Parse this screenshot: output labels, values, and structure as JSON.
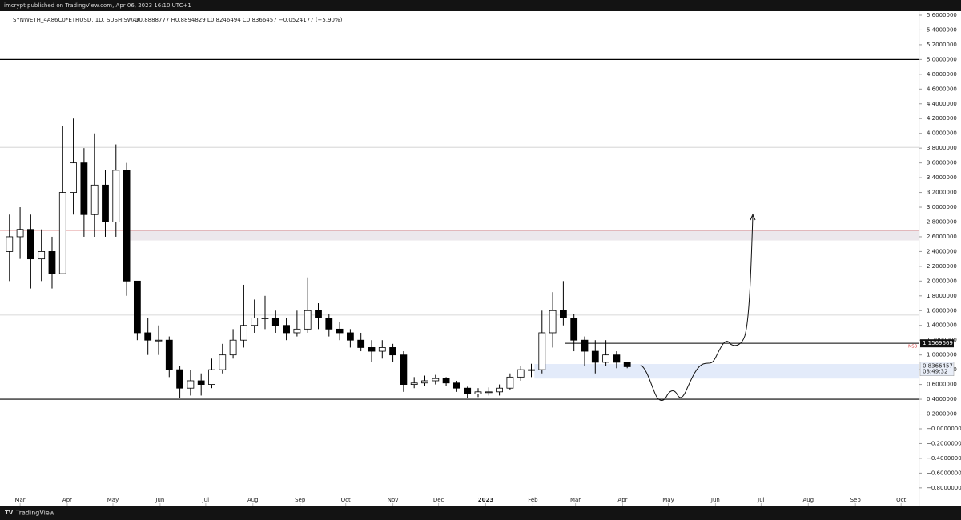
{
  "header": {
    "publisher": "imcrypt published on TradingView.com, Apr 06, 2023 16:10 UTC+1"
  },
  "footer": {
    "brand": "TradingView"
  },
  "chart_data": {
    "type": "candlestick",
    "symbol": "SYNWETH_4A86C0*ETHUSD, 1D, SUSHISWAP",
    "ohlc_text": "O0.8888777 H0.8894829 L0.8246494 C0.8366457 −0.0524177 (−5.90%)",
    "x": [
      -7,
      0,
      7,
      14,
      21,
      28,
      35,
      42,
      49,
      56,
      63,
      70,
      77,
      84,
      91,
      98,
      105,
      112,
      119,
      126,
      133,
      140,
      147,
      154,
      161,
      168,
      175,
      182,
      189,
      196,
      203,
      210,
      217,
      224,
      231,
      238,
      245,
      252,
      259,
      266,
      273,
      280,
      287,
      294,
      301,
      308,
      315,
      322,
      329,
      336,
      343,
      350,
      357,
      364,
      371,
      378,
      385,
      392,
      399
    ],
    "open": [
      2.4,
      2.6,
      2.7,
      2.3,
      2.4,
      2.1,
      3.2,
      3.6,
      2.9,
      3.3,
      2.8,
      3.5,
      2.0,
      1.3,
      1.2,
      1.2,
      0.8,
      0.55,
      0.65,
      0.6,
      0.8,
      1.0,
      1.2,
      1.4,
      1.5,
      1.5,
      1.4,
      1.3,
      1.35,
      1.6,
      1.5,
      1.35,
      1.3,
      1.2,
      1.1,
      1.05,
      1.1,
      1.0,
      0.6,
      0.62,
      0.65,
      0.68,
      0.62,
      0.55,
      0.47,
      0.5,
      0.5,
      0.55,
      0.7,
      0.8,
      0.8,
      1.3,
      1.6,
      1.5,
      1.2,
      1.05,
      0.9,
      1.0,
      0.9
    ],
    "high": [
      2.9,
      3.0,
      2.9,
      2.7,
      2.6,
      4.1,
      4.2,
      3.8,
      4.0,
      3.5,
      3.85,
      3.6,
      2.0,
      1.5,
      1.4,
      1.25,
      0.85,
      0.8,
      0.75,
      0.95,
      1.15,
      1.35,
      1.95,
      1.75,
      1.8,
      1.6,
      1.5,
      1.6,
      2.05,
      1.7,
      1.55,
      1.45,
      1.35,
      1.3,
      1.2,
      1.2,
      1.15,
      1.05,
      0.7,
      0.72,
      0.73,
      0.7,
      0.65,
      0.57,
      0.55,
      0.56,
      0.6,
      0.75,
      0.85,
      0.88,
      1.6,
      1.85,
      2.0,
      1.55,
      1.25,
      1.2,
      1.2,
      1.05,
      0.9
    ],
    "low": [
      2.0,
      2.3,
      1.9,
      2.0,
      1.9,
      2.1,
      2.9,
      2.6,
      2.6,
      2.6,
      2.6,
      1.8,
      1.2,
      1.0,
      1.0,
      0.7,
      0.42,
      0.45,
      0.45,
      0.55,
      0.75,
      0.95,
      1.1,
      1.3,
      1.35,
      1.3,
      1.2,
      1.25,
      1.3,
      1.35,
      1.25,
      1.2,
      1.1,
      1.05,
      0.9,
      0.95,
      0.9,
      0.5,
      0.55,
      0.58,
      0.6,
      0.58,
      0.5,
      0.42,
      0.43,
      0.45,
      0.45,
      0.52,
      0.65,
      0.7,
      0.75,
      1.1,
      1.4,
      1.05,
      0.85,
      0.75,
      0.85,
      0.82,
      0.82
    ],
    "close": [
      2.6,
      2.7,
      2.3,
      2.4,
      2.1,
      3.2,
      3.6,
      2.9,
      3.3,
      2.8,
      3.5,
      2.0,
      1.3,
      1.2,
      1.2,
      0.8,
      0.55,
      0.65,
      0.6,
      0.8,
      1.0,
      1.2,
      1.4,
      1.5,
      1.5,
      1.4,
      1.3,
      1.35,
      1.6,
      1.5,
      1.35,
      1.3,
      1.2,
      1.1,
      1.05,
      1.1,
      1.0,
      0.6,
      0.62,
      0.65,
      0.68,
      0.62,
      0.55,
      0.47,
      0.5,
      0.5,
      0.55,
      0.7,
      0.8,
      0.8,
      1.3,
      1.6,
      1.5,
      1.2,
      1.05,
      0.9,
      1.0,
      0.9,
      0.84
    ],
    "up_color": "#ffffff",
    "down_color": "#000000",
    "xlim": [
      -13.2,
      591
    ],
    "ylim": [
      -1.04,
      5.654
    ],
    "xticks": [
      {
        "value": 0,
        "label": "Mar"
      },
      {
        "value": 31,
        "label": "Apr"
      },
      {
        "value": 61,
        "label": "May"
      },
      {
        "value": 92,
        "label": "Jun"
      },
      {
        "value": 122,
        "label": "Jul"
      },
      {
        "value": 153,
        "label": "Aug"
      },
      {
        "value": 184,
        "label": "Sep"
      },
      {
        "value": 214,
        "label": "Oct"
      },
      {
        "value": 245,
        "label": "Nov"
      },
      {
        "value": 275,
        "label": "Dec"
      },
      {
        "value": 306,
        "label": "2023"
      },
      {
        "value": 337,
        "label": "Feb"
      },
      {
        "value": 365,
        "label": "Mar"
      },
      {
        "value": 396,
        "label": "Apr"
      },
      {
        "value": 426,
        "label": "May"
      },
      {
        "value": 457,
        "label": "Jun"
      },
      {
        "value": 487,
        "label": "Jul"
      },
      {
        "value": 518,
        "label": "Aug"
      },
      {
        "value": 549,
        "label": "Sep"
      },
      {
        "value": 579,
        "label": "Oct"
      }
    ],
    "yticks": [
      {
        "value": 5.6,
        "label": "5.6000000"
      },
      {
        "value": 5.4,
        "label": "5.4000000"
      },
      {
        "value": 5.2,
        "label": "5.2000000"
      },
      {
        "value": 5.0,
        "label": "5.0000000"
      },
      {
        "value": 4.8,
        "label": "4.8000000"
      },
      {
        "value": 4.6,
        "label": "4.6000000"
      },
      {
        "value": 4.4,
        "label": "4.4000000"
      },
      {
        "value": 4.2,
        "label": "4.2000000"
      },
      {
        "value": 4.0,
        "label": "4.0000000"
      },
      {
        "value": 3.8,
        "label": "3.8000000"
      },
      {
        "value": 3.6,
        "label": "3.6000000"
      },
      {
        "value": 3.4,
        "label": "3.4000000"
      },
      {
        "value": 3.2,
        "label": "3.2000000"
      },
      {
        "value": 3.0,
        "label": "3.0000000"
      },
      {
        "value": 2.8,
        "label": "2.8000000"
      },
      {
        "value": 2.6,
        "label": "2.6000000"
      },
      {
        "value": 2.4,
        "label": "2.4000000"
      },
      {
        "value": 2.2,
        "label": "2.2000000"
      },
      {
        "value": 2.0,
        "label": "2.0000000"
      },
      {
        "value": 1.8,
        "label": "1.8000000"
      },
      {
        "value": 1.6,
        "label": "1.6000000"
      },
      {
        "value": 1.4,
        "label": "1.4000000"
      },
      {
        "value": 1.2,
        "label": "1.2000000"
      },
      {
        "value": 1.0,
        "label": "1.0000000"
      },
      {
        "value": 0.8,
        "label": "0.8000000"
      },
      {
        "value": 0.6,
        "label": "0.6000000"
      },
      {
        "value": 0.4,
        "label": "0.4000000"
      },
      {
        "value": 0.2,
        "label": "0.2000000"
      },
      {
        "value": 0,
        "label": "−0.0000000"
      },
      {
        "value": -0.2,
        "label": "−0.2000000"
      },
      {
        "value": -0.4,
        "label": "−0.4000000"
      },
      {
        "value": -0.6,
        "label": "−0.6000000"
      },
      {
        "value": -0.8,
        "label": "−0.8000000"
      }
    ],
    "hlines": [
      {
        "value": 5.0,
        "color": "#000000"
      },
      {
        "value": 2.69,
        "color": "#c62828"
      },
      {
        "value": 0.4,
        "color": "#000000"
      },
      {
        "value": 3.81,
        "color": "#dddddd"
      },
      {
        "value": 1.54,
        "color": "#dddddd"
      }
    ],
    "zones": [
      {
        "range": [
          2.55,
          2.69
        ],
        "start": 70,
        "color": "#ece8ec"
      },
      {
        "range": [
          0.68,
          0.877
        ],
        "start": 338,
        "color": "#e3ebfa"
      }
    ],
    "msb": {
      "value": 1.1569669,
      "start": 358,
      "label": "MSB",
      "tag": "1.1569669"
    },
    "last_price": {
      "value": 0.8366457,
      "label": "0.8366457",
      "countdown": "08:49:32"
    }
  }
}
